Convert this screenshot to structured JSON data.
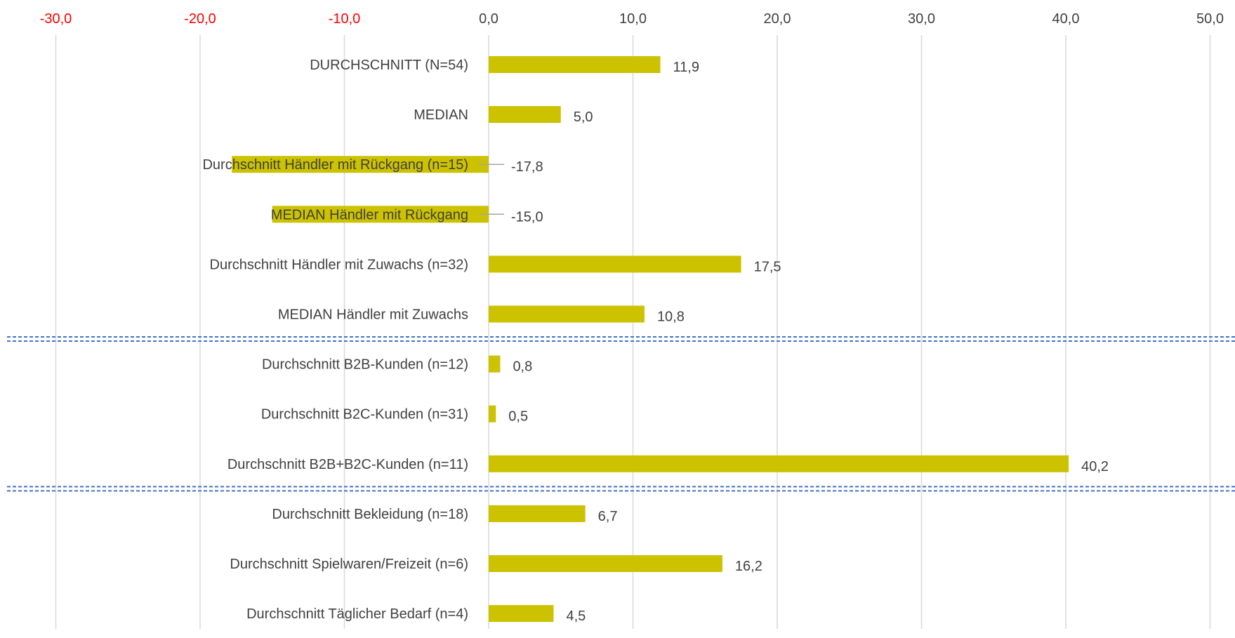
{
  "chart_data": {
    "type": "bar",
    "orientation": "horizontal",
    "x_ticks": [
      "-30,0",
      "-20,0",
      "-10,0",
      "0,0",
      "10,0",
      "20,0",
      "30,0",
      "40,0",
      "50,0"
    ],
    "x_tick_values": [
      -30,
      -20,
      -10,
      0,
      10,
      20,
      30,
      40,
      50
    ],
    "xlim": [
      -30,
      50
    ],
    "grid": "vertical",
    "categories": [
      "DURCHSCHNITT (N=54)",
      "MEDIAN",
      "Durchschnitt Händler mit Rückgang (n=15)",
      "MEDIAN Händler mit Rückgang",
      "Durchschnitt Händler mit Zuwachs (n=32)",
      "MEDIAN Händler mit Zuwachs",
      "Durchschnitt B2B-Kunden (n=12)",
      "Durchschnitt B2C-Kunden (n=31)",
      "Durchschnitt B2B+B2C-Kunden (n=11)",
      "Durchschnitt Bekleidung (n=18)",
      "Durchschnitt Spielwaren/Freizeit (n=6)",
      "Durchschnitt Täglicher Bedarf (n=4)"
    ],
    "values": [
      11.9,
      5.0,
      -17.8,
      -15.0,
      17.5,
      10.8,
      0.8,
      0.5,
      40.2,
      6.7,
      16.2,
      4.5
    ],
    "value_labels": [
      "11,9",
      "5,0",
      "-17,8",
      "-15,0",
      "17,5",
      "10,8",
      "0,8",
      "0,5",
      "40,2",
      "6,7",
      "16,2",
      "4,5"
    ],
    "group_separators_after": [
      5,
      8
    ]
  },
  "colors": {
    "bar": "#CCC200",
    "grid": "#D9D9D9",
    "negative_tick": "#FF0000",
    "positive_tick": "#404040",
    "text": "#404040",
    "separator": "#4472C4",
    "leader_line": "#A6A6A6"
  }
}
